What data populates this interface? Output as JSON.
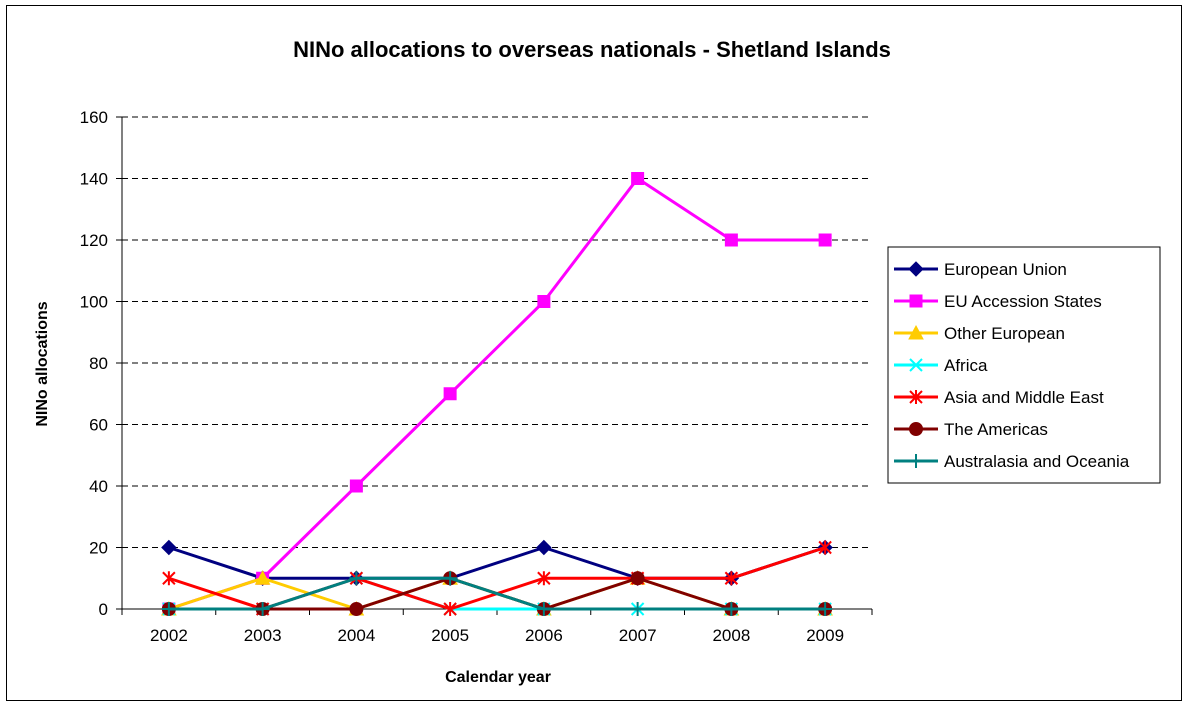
{
  "chart_data": {
    "type": "line",
    "title": "NINo allocations to overseas nationals  - Shetland Islands",
    "xlabel": "Calendar year",
    "ylabel": "NINo allocations",
    "categories": [
      "2002",
      "2003",
      "2004",
      "2005",
      "2006",
      "2007",
      "2008",
      "2009"
    ],
    "ylim": [
      0,
      160
    ],
    "yticks": [
      0,
      20,
      40,
      60,
      80,
      100,
      120,
      140,
      160
    ],
    "grid": "horizontal-dashed",
    "legend": "right",
    "series": [
      {
        "name": "European Union",
        "color": "#000080",
        "marker": "diamond",
        "values": [
          20,
          10,
          10,
          10,
          20,
          10,
          10,
          20
        ]
      },
      {
        "name": "EU Accession States",
        "color": "#FF00FF",
        "marker": "square",
        "values": [
          0,
          10,
          40,
          70,
          100,
          140,
          120,
          120
        ]
      },
      {
        "name": "Other European",
        "color": "#FFCC00",
        "marker": "triangle",
        "values": [
          0,
          10,
          0,
          10,
          0,
          10,
          0,
          0
        ]
      },
      {
        "name": "Africa",
        "color": "#00FFFF",
        "marker": "x",
        "values": [
          0,
          0,
          10,
          0,
          0,
          0,
          0,
          0
        ]
      },
      {
        "name": "Asia and Middle East",
        "color": "#FF0000",
        "marker": "asterisk",
        "values": [
          10,
          0,
          10,
          0,
          10,
          10,
          10,
          20
        ]
      },
      {
        "name": "The Americas",
        "color": "#800000",
        "marker": "circle",
        "values": [
          0,
          0,
          0,
          10,
          0,
          10,
          0,
          0
        ]
      },
      {
        "name": "Australasia and Oceania",
        "color": "#008080",
        "marker": "plus",
        "values": [
          0,
          0,
          10,
          10,
          0,
          0,
          0,
          0
        ]
      }
    ]
  }
}
